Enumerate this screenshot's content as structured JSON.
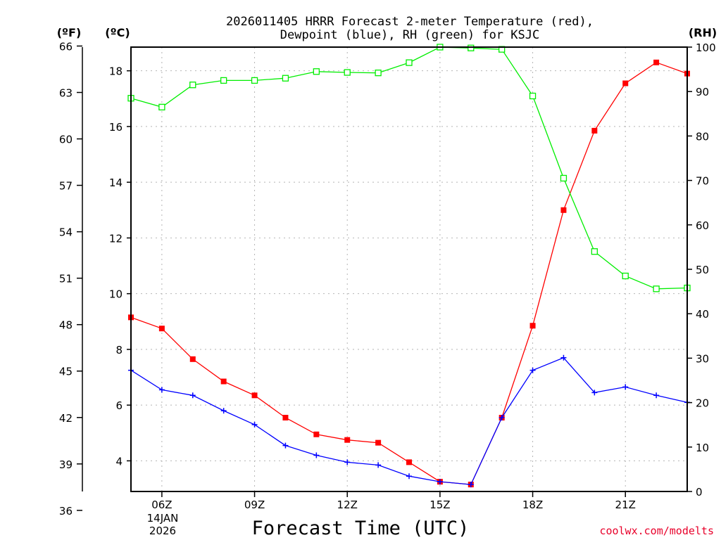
{
  "chart_data": {
    "type": "line",
    "title_line1": "2026011405 HRRR Forecast 2-meter Temperature (red),",
    "title_line2": "Dewpoint (blue), RH (green) for KSJC",
    "unit_left_f": "(ºF)",
    "unit_left_c": "(ºC)",
    "unit_right": "(RH)",
    "xlabel": "Forecast Time (UTC)",
    "date_line1": "14JAN",
    "date_line2": "2026",
    "credit": "coolwx.com/modelts",
    "x": [
      5,
      6,
      7,
      8,
      9,
      10,
      11,
      12,
      13,
      14,
      15,
      16,
      17,
      18,
      19,
      20,
      21,
      22,
      23
    ],
    "xlim": [
      5,
      23
    ],
    "x_ticks": [
      6,
      9,
      12,
      15,
      18,
      21
    ],
    "x_tick_labels": [
      "06Z",
      "09Z",
      "12Z",
      "15Z",
      "18Z",
      "21Z"
    ],
    "ylim_c": [
      2.9,
      18.85
    ],
    "y_ticks_c": [
      4,
      6,
      8,
      10,
      12,
      14,
      16,
      18
    ],
    "y_ticks_c_labels": [
      "4",
      "6",
      "8",
      "10",
      "12",
      "14",
      "16",
      "18"
    ],
    "y_ticks_f": [
      36,
      39,
      42,
      45,
      48,
      51,
      54,
      57,
      60,
      63,
      66
    ],
    "y_ticks_f_labels": [
      "36",
      "39",
      "42",
      "45",
      "48",
      "51",
      "54",
      "57",
      "60",
      "63",
      "66"
    ],
    "ylim_rh": [
      0,
      100
    ],
    "y_ticks_rh": [
      0,
      10,
      20,
      30,
      40,
      50,
      60,
      70,
      80,
      90,
      100
    ],
    "y_ticks_rh_labels": [
      "0",
      "10",
      "20",
      "30",
      "40",
      "50",
      "60",
      "70",
      "80",
      "90",
      "100"
    ],
    "series": [
      {
        "name": "Temperature",
        "axis": "c",
        "color": "#ff0000",
        "values": [
          9.15,
          8.75,
          7.65,
          6.85,
          6.35,
          5.55,
          4.95,
          4.75,
          4.65,
          3.95,
          3.25,
          3.15,
          5.55,
          8.85,
          13.0,
          15.85,
          17.55,
          18.3,
          17.9
        ]
      },
      {
        "name": "Dewpoint",
        "axis": "c",
        "color": "#0000ff",
        "values": [
          7.25,
          6.55,
          6.35,
          5.8,
          5.3,
          4.55,
          4.2,
          3.95,
          3.85,
          3.45,
          3.25,
          3.15,
          5.55,
          7.25,
          7.7,
          6.45,
          6.65,
          6.35,
          6.1
        ]
      },
      {
        "name": "RH",
        "axis": "rh",
        "color": "#00ee00",
        "values": [
          88.5,
          86.5,
          91.5,
          92.5,
          92.5,
          93.0,
          94.5,
          94.3,
          94.2,
          96.5,
          100.0,
          99.8,
          99.5,
          89.0,
          70.5,
          54.0,
          48.5,
          45.6,
          45.8
        ]
      }
    ]
  }
}
